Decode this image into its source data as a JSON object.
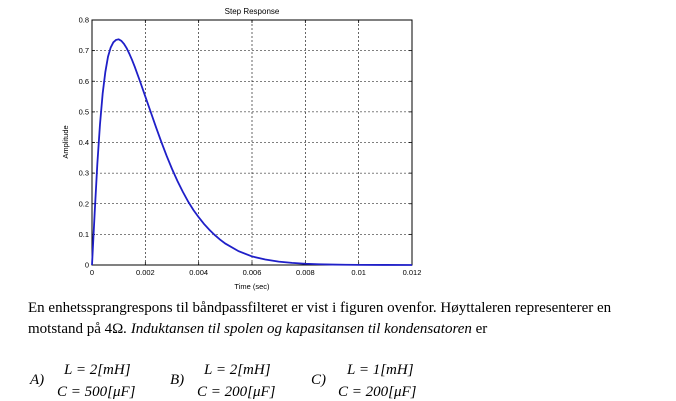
{
  "chart_data": {
    "type": "line",
    "title": "Step Response",
    "xlabel": "Time (sec)",
    "ylabel": "Amplitude",
    "xlim": [
      0,
      0.012
    ],
    "ylim": [
      0,
      0.8
    ],
    "xticks": [
      0,
      0.002,
      0.004,
      0.006,
      0.008,
      0.01,
      0.012
    ],
    "xtick_labels": [
      "0",
      "0.002",
      "0.004",
      "0.006",
      "0.008",
      "0.01",
      "0.012"
    ],
    "yticks": [
      0,
      0.1,
      0.2,
      0.3,
      0.4,
      0.5,
      0.6,
      0.7,
      0.8
    ],
    "ytick_labels": [
      "0",
      "0.1",
      "0.2",
      "0.3",
      "0.4",
      "0.5",
      "0.6",
      "0.7",
      "0.8"
    ],
    "grid": true,
    "line_color": "#1f1fc8",
    "series": [
      {
        "x": [
          0,
          0.0001,
          0.0002,
          0.0003,
          0.0004,
          0.0005,
          0.0006,
          0.0007,
          0.0008,
          0.0009,
          0.001,
          0.0011,
          0.0012,
          0.0013,
          0.0014,
          0.0015,
          0.0016,
          0.0018,
          0.002,
          0.0022,
          0.0024,
          0.0026,
          0.0028,
          0.003,
          0.0032,
          0.0034,
          0.0036,
          0.0038,
          0.004,
          0.0042,
          0.0044,
          0.0046,
          0.0048,
          0.005,
          0.0055,
          0.006,
          0.0065,
          0.007,
          0.0075,
          0.008,
          0.0085,
          0.009,
          0.0095,
          0.01,
          0.011,
          0.012
        ],
        "y": [
          0,
          0.17,
          0.33,
          0.46,
          0.56,
          0.63,
          0.68,
          0.71,
          0.727,
          0.735,
          0.737,
          0.732,
          0.722,
          0.708,
          0.69,
          0.67,
          0.648,
          0.6,
          0.55,
          0.5,
          0.45,
          0.402,
          0.356,
          0.314,
          0.275,
          0.24,
          0.208,
          0.18,
          0.156,
          0.134,
          0.115,
          0.098,
          0.083,
          0.07,
          0.045,
          0.028,
          0.018,
          0.011,
          0.007,
          0.004,
          0.0025,
          0.0015,
          0.0009,
          0.0005,
          0.0002,
          0.0001
        ]
      }
    ]
  },
  "text": {
    "line1": "En enhetssprangrespons til båndpassfilteret er vist i figuren ovenfor. Høyttaleren representerer en",
    "line2_prefix": "motstand på",
    "line2_value": "4Ω",
    "line2_italic": ". Induktansen til spolen og kapasitansen til kondensatoren",
    "line2_suffix": "er"
  },
  "options": [
    {
      "letter": "A)",
      "L": "L = 2[mH]",
      "C": "C = 500[μF]"
    },
    {
      "letter": "B)",
      "L": "L = 2[mH]",
      "C": "C = 200[μF]"
    },
    {
      "letter": "C)",
      "L": "L = 1[mH]",
      "C": "C = 200[μF]"
    }
  ]
}
